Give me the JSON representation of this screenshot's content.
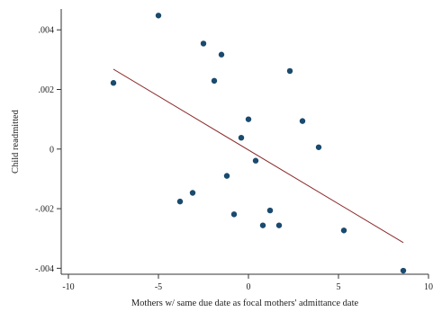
{
  "chart_data": {
    "type": "scatter",
    "xlabel": "Mothers w/ same due date as focal mothers' admittance date",
    "ylabel": "Child readmitted",
    "xlim": [
      -10.4,
      10
    ],
    "ylim": [
      -0.0042,
      0.0047
    ],
    "x_ticks": [
      -10,
      -5,
      0,
      5,
      10
    ],
    "x_tick_labels": [
      "-10",
      "-5",
      "0",
      "5",
      "10"
    ],
    "y_ticks": [
      -0.004,
      -0.002,
      0,
      0.002,
      0.004
    ],
    "y_tick_labels": [
      "-.004",
      "-.002",
      "0",
      ".002",
      ".004"
    ],
    "grid": false,
    "marker_color": "#1a4a6e",
    "fit_line_color": "#8b2a2a",
    "points": [
      {
        "x": -7.5,
        "y": 0.00222
      },
      {
        "x": -5.0,
        "y": 0.00448
      },
      {
        "x": -3.8,
        "y": -0.00176
      },
      {
        "x": -3.1,
        "y": -0.00147
      },
      {
        "x": -2.5,
        "y": 0.00354
      },
      {
        "x": -1.9,
        "y": 0.00229
      },
      {
        "x": -1.5,
        "y": 0.00317
      },
      {
        "x": -1.2,
        "y": -0.0009
      },
      {
        "x": -0.8,
        "y": -0.00219
      },
      {
        "x": -0.4,
        "y": 0.00038
      },
      {
        "x": 0.0,
        "y": 0.001
      },
      {
        "x": 0.4,
        "y": -0.00039
      },
      {
        "x": 0.8,
        "y": -0.00256
      },
      {
        "x": 1.2,
        "y": -0.00206
      },
      {
        "x": 1.7,
        "y": -0.00256
      },
      {
        "x": 2.3,
        "y": 0.00262
      },
      {
        "x": 3.0,
        "y": 0.00094
      },
      {
        "x": 3.9,
        "y": 6e-05
      },
      {
        "x": 5.3,
        "y": -0.00273
      },
      {
        "x": 8.6,
        "y": -0.00408
      }
    ],
    "fit_line": {
      "x": [
        -7.5,
        8.6
      ],
      "y": [
        0.00268,
        -0.00314
      ]
    }
  }
}
